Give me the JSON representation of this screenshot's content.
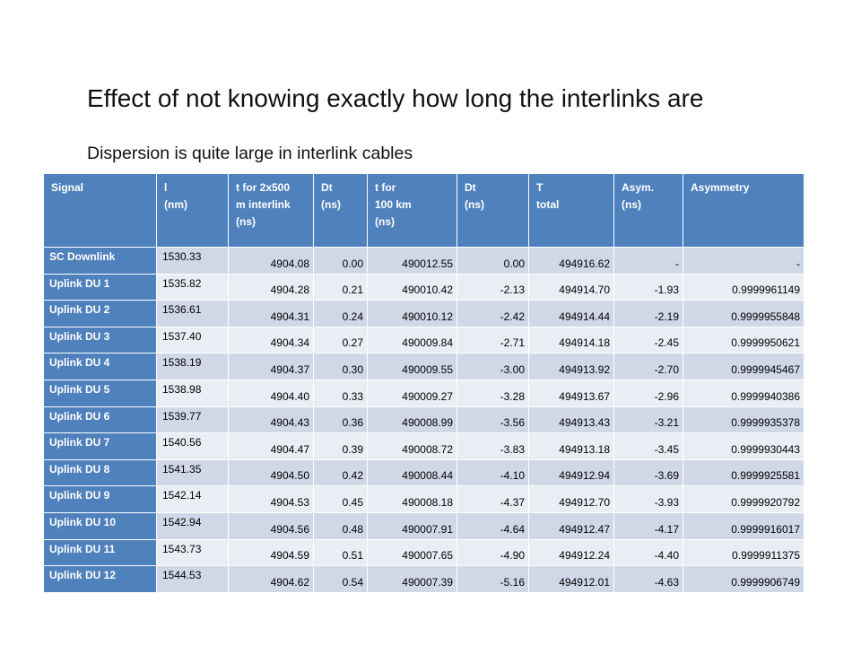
{
  "slide": {
    "title": "Effect of not knowing exactly how long the interlinks are",
    "subtitle": "Dispersion is quite large in interlink cables"
  },
  "table": {
    "headers": [
      [
        "Signal"
      ],
      [
        "l",
        "(nm)"
      ],
      [
        "t  for 2x500",
        "m interlink",
        "(ns)"
      ],
      [
        "Dt",
        "(ns)"
      ],
      [
        "t for",
        "  100 km",
        "(ns)"
      ],
      [
        "Dt",
        "(ns)"
      ],
      [
        "T",
        "total"
      ],
      [
        "Asym.",
        "(ns)"
      ],
      [
        "Asymmetry"
      ]
    ],
    "rows": [
      [
        "SC Downlink",
        "1530.33",
        "4904.08",
        "0.00",
        "490012.55",
        "0.00",
        "494916.62",
        "-",
        "-"
      ],
      [
        "Uplink DU 1",
        "1535.82",
        "4904.28",
        "0.21",
        "490010.42",
        "-2.13",
        "494914.70",
        "-1.93",
        "0.9999961149"
      ],
      [
        "Uplink DU 2",
        "1536.61",
        "4904.31",
        "0.24",
        "490010.12",
        "-2.42",
        "494914.44",
        "-2.19",
        "0.9999955848"
      ],
      [
        "Uplink DU 3",
        "1537.40",
        "4904.34",
        "0.27",
        "490009.84",
        "-2.71",
        "494914.18",
        "-2.45",
        "0.9999950621"
      ],
      [
        "Uplink DU 4",
        "1538.19",
        "4904.37",
        "0.30",
        "490009.55",
        "-3.00",
        "494913.92",
        "-2.70",
        "0.9999945467"
      ],
      [
        "Uplink DU 5",
        "1538.98",
        "4904.40",
        "0.33",
        "490009.27",
        "-3.28",
        "494913.67",
        "-2.96",
        "0.9999940386"
      ],
      [
        "Uplink DU 6",
        "1539.77",
        "4904.43",
        "0.36",
        "490008.99",
        "-3.56",
        "494913.43",
        "-3.21",
        "0.9999935378"
      ],
      [
        "Uplink DU 7",
        "1540.56",
        "4904.47",
        "0.39",
        "490008.72",
        "-3.83",
        "494913.18",
        "-3.45",
        "0.9999930443"
      ],
      [
        "Uplink DU 8",
        "1541.35",
        "4904.50",
        "0.42",
        "490008.44",
        "-4.10",
        "494912.94",
        "-3.69",
        "0.9999925581"
      ],
      [
        "Uplink DU 9",
        "1542.14",
        "4904.53",
        "0.45",
        "490008.18",
        "-4.37",
        "494912.70",
        "-3.93",
        "0.9999920792"
      ],
      [
        "Uplink DU 10",
        "1542.94",
        "4904.56",
        "0.48",
        "490007.91",
        "-4.64",
        "494912.47",
        "-4.17",
        "0.9999916017"
      ],
      [
        "Uplink DU 11",
        "1543.73",
        "4904.59",
        "0.51",
        "490007.65",
        "-4.90",
        "494912.24",
        "-4.40",
        "0.9999911375"
      ],
      [
        "Uplink DU 12",
        "1544.53",
        "4904.62",
        "0.54",
        "490007.39",
        "-5.16",
        "494912.01",
        "-4.63",
        "0.9999906749"
      ]
    ]
  },
  "colors": {
    "header_bg": "#4f81bd",
    "row_odd": "#d0d8e8",
    "row_even": "#e9edf4"
  }
}
